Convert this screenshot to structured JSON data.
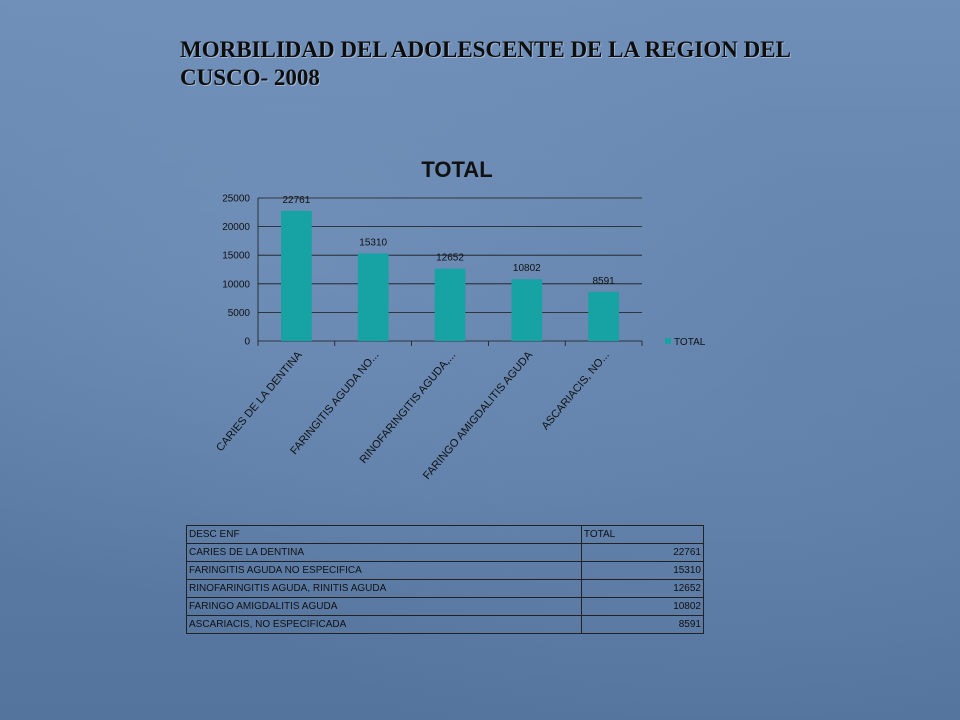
{
  "slide": {
    "title": "MORBILIDAD DEL ADOLESCENTE DE LA REGION DEL CUSCO- 2008"
  },
  "colors": {
    "bar": "#17a2a3",
    "grid": "#1a1a1a"
  },
  "chart_data": {
    "type": "bar",
    "title": "TOTAL",
    "categories": [
      "CARIES  DE LA DENTINA",
      "FARINGITIS AGUDA NO...",
      "RINOFARINGITIS AGUDA,...",
      "FARINGO AMIGDALITIS AGUDA",
      "ASCARIACIS, NO..."
    ],
    "series": [
      {
        "name": "TOTAL",
        "values": [
          22761,
          15310,
          12652,
          10802,
          8591
        ]
      }
    ],
    "data_labels": [
      "22761",
      "15310",
      "12652",
      "10802",
      "8591"
    ],
    "yticks": [
      "0",
      "5000",
      "10000",
      "15000",
      "20000",
      "25000"
    ],
    "ylim": [
      0,
      25000
    ],
    "grid": true,
    "legend": "right"
  },
  "table": {
    "headers": [
      "DESC ENF",
      "TOTAL"
    ],
    "rows": [
      [
        "CARIES  DE LA DENTINA",
        "22761"
      ],
      [
        "FARINGITIS AGUDA NO ESPECIFICA",
        "15310"
      ],
      [
        "RINOFARINGITIS AGUDA, RINITIS AGUDA",
        "12652"
      ],
      [
        "FARINGO AMIGDALITIS AGUDA",
        "10802"
      ],
      [
        "ASCARIACIS, NO ESPECIFICADA",
        "8591"
      ]
    ]
  }
}
